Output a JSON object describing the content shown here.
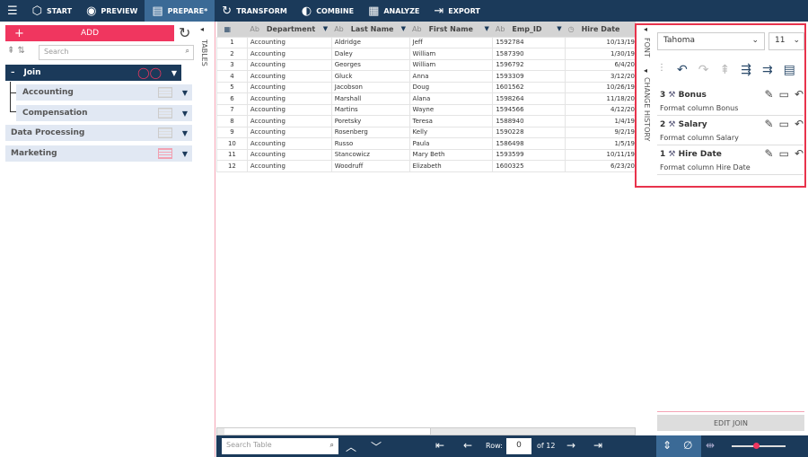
{
  "nav": {
    "items": [
      {
        "label": "START",
        "icon": "cube-icon"
      },
      {
        "label": "PREVIEW",
        "icon": "eye-icon"
      },
      {
        "label": "PREPARE*",
        "icon": "book-icon",
        "active": true
      },
      {
        "label": "TRANSFORM",
        "icon": "transform-icon"
      },
      {
        "label": "COMBINE",
        "icon": "combine-icon"
      },
      {
        "label": "ANALYZE",
        "icon": "clipboard-icon"
      },
      {
        "label": "EXPORT",
        "icon": "export-icon"
      }
    ]
  },
  "left": {
    "add_label": "ADD",
    "search_placeholder": "Search",
    "join_label": "Join",
    "join_children": [
      "Accounting",
      "Compensation"
    ],
    "others": [
      "Data Processing",
      "Marketing"
    ],
    "tables_tab": "TABLES"
  },
  "grid": {
    "columns": [
      "Department",
      "Last Name",
      "First Name",
      "Emp_ID",
      "Hire Date"
    ],
    "rows": [
      [
        "1",
        "Accounting",
        "Aldridge",
        "Jeff",
        "1592784",
        "10/13/19"
      ],
      [
        "2",
        "Accounting",
        "Daley",
        "William",
        "1587390",
        "1/30/19"
      ],
      [
        "3",
        "Accounting",
        "Georges",
        "William",
        "1596792",
        "6/4/20"
      ],
      [
        "4",
        "Accounting",
        "Gluck",
        "Anna",
        "1593309",
        "3/12/20"
      ],
      [
        "5",
        "Accounting",
        "Jacobson",
        "Doug",
        "1601562",
        "10/26/19"
      ],
      [
        "6",
        "Accounting",
        "Marshall",
        "Alana",
        "1598264",
        "11/18/20"
      ],
      [
        "7",
        "Accounting",
        "Martins",
        "Wayne",
        "1594566",
        "4/12/20"
      ],
      [
        "8",
        "Accounting",
        "Poretsky",
        "Teresa",
        "1588940",
        "1/4/19"
      ],
      [
        "9",
        "Accounting",
        "Rosenberg",
        "Kelly",
        "1590228",
        "9/2/19"
      ],
      [
        "10",
        "Accounting",
        "Russo",
        "Paula",
        "1586498",
        "1/5/19"
      ],
      [
        "11",
        "Accounting",
        "Stancowicz",
        "Mary Beth",
        "1593599",
        "10/11/19"
      ],
      [
        "12",
        "Accounting",
        "Woodruff",
        "Elizabeth",
        "1600325",
        "6/23/20"
      ]
    ]
  },
  "panel": {
    "font_tab": "FONT",
    "history_tab": "CHANGE HISTORY",
    "font_family": "Tahoma",
    "font_size": "11",
    "history": [
      {
        "num": "3",
        "title": "Bonus",
        "desc": "Format column Bonus"
      },
      {
        "num": "2",
        "title": "Salary",
        "desc": "Format column Salary"
      },
      {
        "num": "1",
        "title": "Hire Date",
        "desc": "Format column Hire Date"
      }
    ],
    "edit_join": "EDIT JOIN"
  },
  "bottom": {
    "search_placeholder": "Search Table",
    "row_label": "Row:",
    "row_value": "0",
    "of_label": "of 12",
    "zoom_level": 0.45
  },
  "colors": {
    "nav": "#1b3a5a",
    "accent": "#f0365f",
    "highlight": "#e8334c"
  }
}
